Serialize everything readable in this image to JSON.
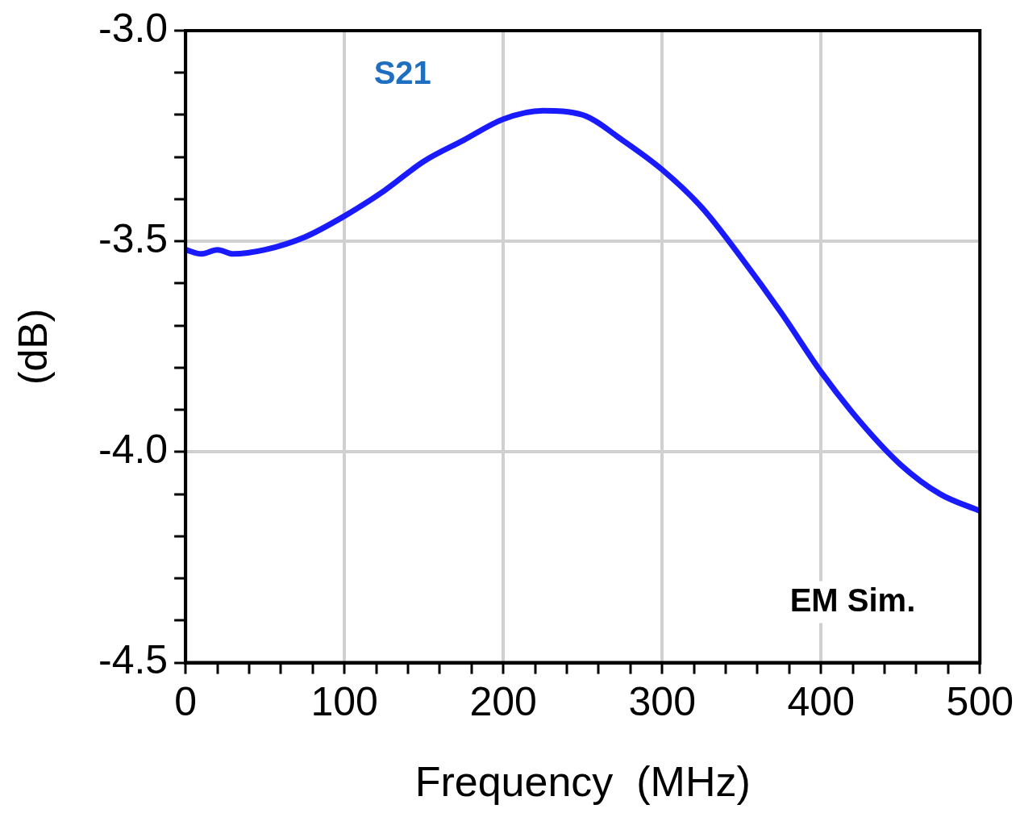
{
  "chart_data": {
    "type": "line",
    "xlabel": "Frequency  (MHz)",
    "ylabel": "(dB)",
    "x": [
      0,
      10,
      20,
      30,
      50,
      75,
      100,
      125,
      150,
      175,
      200,
      225,
      250,
      275,
      300,
      325,
      350,
      375,
      400,
      425,
      450,
      475,
      500
    ],
    "series": [
      {
        "name": "S21",
        "color": "#1a1aff",
        "values": [
          -3.52,
          -3.53,
          -3.52,
          -3.53,
          -3.52,
          -3.49,
          -3.44,
          -3.38,
          -3.31,
          -3.26,
          -3.21,
          -3.19,
          -3.2,
          -3.26,
          -3.33,
          -3.42,
          -3.54,
          -3.67,
          -3.81,
          -3.93,
          -4.03,
          -4.1,
          -4.14
        ]
      }
    ],
    "xlim": [
      0,
      500
    ],
    "xticks": [
      0,
      {
        "value": 20,
        "label": null
      },
      {
        "value": 40,
        "label": null
      },
      {
        "value": 60,
        "label": null
      },
      {
        "value": 80,
        "label": null
      },
      100,
      {
        "value": 120,
        "label": null
      },
      {
        "value": 140,
        "label": null
      },
      {
        "value": 160,
        "label": null
      },
      {
        "value": 180,
        "label": null
      },
      200,
      {
        "value": 220,
        "label": null
      },
      {
        "value": 240,
        "label": null
      },
      {
        "value": 260,
        "label": null
      },
      {
        "value": 280,
        "label": null
      },
      300,
      {
        "value": 320,
        "label": null
      },
      {
        "value": 340,
        "label": null
      },
      {
        "value": 360,
        "label": null
      },
      {
        "value": 380,
        "label": null
      },
      400,
      {
        "value": 420,
        "label": null
      },
      {
        "value": 440,
        "label": null
      },
      {
        "value": 460,
        "label": null
      },
      {
        "value": 480,
        "label": null
      },
      500
    ],
    "ylim": [
      -4.5,
      -3.0
    ],
    "yticks": [
      {
        "value": -4.5,
        "label": "-4.5"
      },
      {
        "value": -4.4,
        "label": null
      },
      {
        "value": -4.3,
        "label": null
      },
      {
        "value": -4.2,
        "label": null
      },
      {
        "value": -4.1,
        "label": null
      },
      {
        "value": -4.0,
        "label": "-4.0"
      },
      {
        "value": -3.9,
        "label": null
      },
      {
        "value": -3.8,
        "label": null
      },
      {
        "value": -3.7,
        "label": null
      },
      {
        "value": -3.6,
        "label": null
      },
      {
        "value": -3.5,
        "label": "-3.5"
      },
      {
        "value": -3.4,
        "label": null
      },
      {
        "value": -3.3,
        "label": null
      },
      {
        "value": -3.2,
        "label": null
      },
      {
        "value": -3.1,
        "label": null
      },
      {
        "value": -3.0,
        "label": "-3.0"
      }
    ],
    "grid": true,
    "legend": false,
    "marker": "none",
    "line_style": "solid",
    "annotations": [
      "EM Sim."
    ]
  }
}
